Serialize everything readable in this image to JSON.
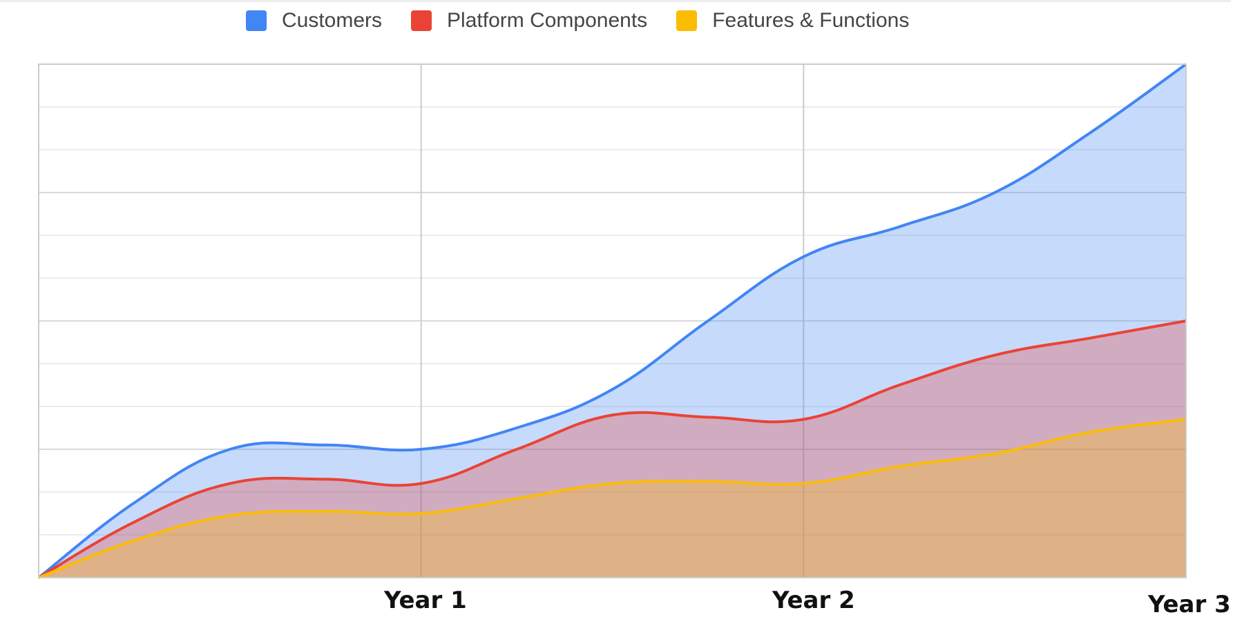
{
  "legend": [
    {
      "label": "Customers",
      "color": "#4285f4"
    },
    {
      "label": "Platform Components",
      "color": "#ea4335"
    },
    {
      "label": "Features & Functions",
      "color": "#fbbc04"
    }
  ],
  "x_labels": [
    "Year 1",
    "Year 2",
    "Year 3"
  ],
  "chart_data": {
    "type": "area",
    "title": "",
    "xlabel": "",
    "ylabel": "",
    "x": [
      0,
      0.25,
      0.5,
      0.75,
      1,
      1.25,
      1.5,
      1.75,
      2,
      2.25,
      2.5,
      2.75,
      3
    ],
    "x_tick_labels": {
      "1": "Year 1",
      "2": "Year 2",
      "3": "Year 3"
    },
    "xlim": [
      0,
      3
    ],
    "ylim": [
      0,
      12
    ],
    "y_tick_labels_visible": false,
    "grid": {
      "horizontal_lines": 12,
      "vertical_lines": [
        "Year 1",
        "Year 2"
      ]
    },
    "legend_position": "top",
    "stacked": false,
    "curve": "smooth",
    "series": [
      {
        "name": "Customers",
        "color": "#4285f4",
        "fill": "#c6dafa",
        "values": [
          0,
          1.75,
          3.0,
          3.1,
          3.0,
          3.5,
          4.4,
          6.0,
          7.5,
          8.2,
          9.0,
          10.4,
          12.0
        ]
      },
      {
        "name": "Platform Components",
        "color": "#ea4335",
        "fill": "#d0aac2",
        "values": [
          0,
          1.3,
          2.2,
          2.3,
          2.2,
          3.0,
          3.8,
          3.75,
          3.7,
          4.5,
          5.2,
          5.6,
          6.0
        ]
      },
      {
        "name": "Features & Functions",
        "color": "#fbbc04",
        "fill": "#dcb087",
        "values": [
          0,
          0.87,
          1.45,
          1.55,
          1.5,
          1.85,
          2.2,
          2.25,
          2.2,
          2.6,
          2.9,
          3.4,
          3.7
        ]
      }
    ]
  }
}
